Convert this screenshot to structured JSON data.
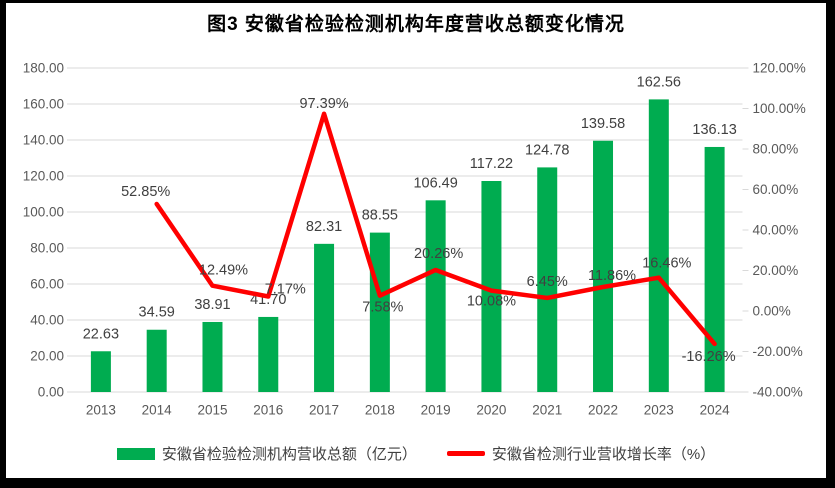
{
  "chart_data": {
    "type": "combo-bar-line",
    "title": "图3 安徽省检验检测机构年度营收总额变化情况",
    "categories": [
      "2013",
      "2014",
      "2015",
      "2016",
      "2017",
      "2018",
      "2019",
      "2020",
      "2021",
      "2022",
      "2023",
      "2024"
    ],
    "series": [
      {
        "name": "安徽省检验检测机构营收总额（亿元）",
        "type": "bar",
        "axis": "left",
        "color": "#00AC50",
        "values": [
          22.63,
          34.59,
          38.91,
          41.7,
          82.31,
          88.55,
          106.49,
          117.22,
          124.78,
          139.58,
          162.56,
          136.13
        ],
        "labels": [
          "22.63",
          "34.59",
          "38.91",
          "41.70",
          "82.31",
          "88.55",
          "106.49",
          "117.22",
          "124.78",
          "139.58",
          "162.56",
          "136.13"
        ]
      },
      {
        "name": "安徽省检测行业营收增长率（%）",
        "type": "line",
        "axis": "right",
        "color": "#FF0000",
        "values": [
          null,
          52.85,
          12.49,
          7.17,
          97.39,
          7.58,
          20.26,
          10.08,
          6.45,
          11.86,
          16.46,
          -16.26
        ],
        "labels": [
          null,
          "52.85%",
          "12.49%",
          "7.17%",
          "97.39%",
          "7.58%",
          "20.26%",
          "10.08%",
          "6.45%",
          "11.86%",
          "16.46%",
          "-16.26%"
        ],
        "label_offsets": [
          null,
          [
            -11,
            -12
          ],
          [
            11,
            -15
          ],
          [
            17,
            -7
          ],
          [
            0,
            -10
          ],
          [
            3,
            12
          ],
          [
            3,
            -16
          ],
          [
            0,
            11
          ],
          [
            0,
            -16
          ],
          [
            9,
            -11
          ],
          [
            8,
            -14
          ],
          [
            -6,
            13
          ]
        ]
      }
    ],
    "left_axis": {
      "min": 0,
      "max": 180,
      "step": 20,
      "tick_labels": [
        "180.00",
        "160.00",
        "140.00",
        "120.00",
        "100.00",
        "80.00",
        "60.00",
        "40.00",
        "20.00",
        "0.00"
      ]
    },
    "right_axis": {
      "min": -40,
      "max": 120,
      "step": 20,
      "tick_labels": [
        "120.00%",
        "100.00%",
        "80.00%",
        "60.00%",
        "40.00%",
        "20.00%",
        "0.00%",
        "-20.00%",
        "-40.00%"
      ]
    },
    "grid": "horizontal",
    "grid_color": "#D9D9D9",
    "axis_text_color": "#595959",
    "data_label_color": "#404040",
    "legend_position": "bottom"
  }
}
